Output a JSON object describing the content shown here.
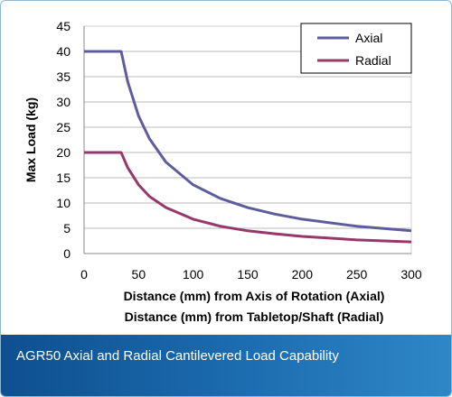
{
  "caption": "AGR50 Axial and Radial Cantilevered Load Capability",
  "chart_data": {
    "type": "line",
    "ylabel": "Max Load (kg)",
    "xlabel_lines": [
      "Distance (mm) from Axis of Rotation (Axial)",
      "Distance (mm) from Tabletop/Shaft (Radial)"
    ],
    "xlim": [
      0,
      300
    ],
    "ylim": [
      0,
      45
    ],
    "x_ticks": [
      0,
      50,
      100,
      150,
      200,
      250,
      300
    ],
    "y_ticks": [
      0,
      5,
      10,
      15,
      20,
      25,
      30,
      35,
      40,
      45
    ],
    "grid": "horizontal",
    "legend_position": "top-right",
    "series": [
      {
        "name": "Axial",
        "color": "#5d5d9e",
        "x": [
          0,
          34,
          40,
          50,
          60,
          75,
          100,
          125,
          150,
          175,
          200,
          250,
          300
        ],
        "y": [
          40,
          40,
          34,
          27.2,
          22.7,
          18.1,
          13.6,
          10.9,
          9.1,
          7.8,
          6.8,
          5.4,
          4.5
        ]
      },
      {
        "name": "Radial",
        "color": "#96386a",
        "x": [
          0,
          34,
          40,
          50,
          60,
          75,
          100,
          125,
          150,
          175,
          200,
          250,
          300
        ],
        "y": [
          20,
          20,
          17,
          13.6,
          11.3,
          9.1,
          6.8,
          5.4,
          4.5,
          3.9,
          3.4,
          2.7,
          2.3
        ]
      }
    ]
  }
}
